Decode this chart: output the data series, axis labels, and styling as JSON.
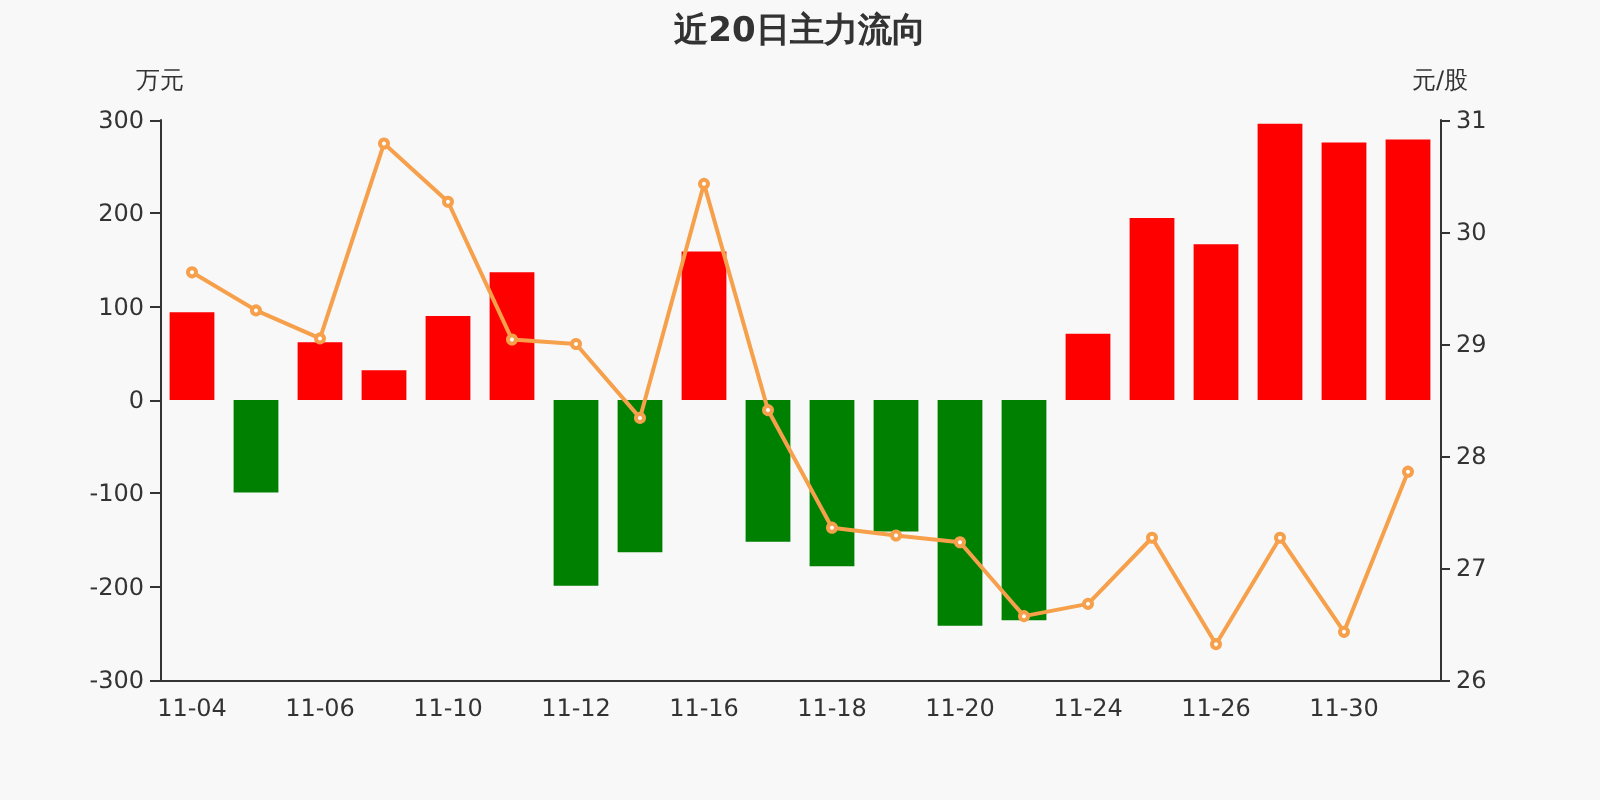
{
  "chart_data": {
    "type": "bar",
    "title": "近20日主力流向",
    "ylabel": "万元",
    "y2label": "元/股",
    "categories": [
      "11-04",
      null,
      "11-06",
      null,
      "11-10",
      null,
      "11-12",
      null,
      "11-16",
      null,
      "11-18",
      null,
      "11-20",
      null,
      "11-24",
      null,
      "11-26",
      null,
      "11-30",
      null
    ],
    "series": [
      {
        "colors": [
          "#ff0000",
          "#008000",
          "#ff0000",
          "#ff0000",
          "#ff0000",
          "#ff0000",
          "#008000",
          "#008000",
          "#ff0000",
          "#008000",
          "#008000",
          "#008000",
          "#008000",
          "#008000",
          "#ff0000",
          "#ff0000",
          "#ff0000",
          "#ff0000",
          "#ff0000",
          "#ff0000"
        ],
        "values": [
          94,
          -99,
          62,
          32,
          90,
          137,
          -199,
          -163,
          159,
          -152,
          -178,
          -141,
          -242,
          -236,
          71,
          195,
          167,
          296,
          276,
          279
        ]
      },
      {
        "type": "line",
        "axis": "y2",
        "color": "#f7a04b",
        "marker": "circle",
        "values": [
          29.64,
          29.3,
          29.05,
          30.79,
          30.27,
          29.04,
          29.0,
          28.34,
          30.43,
          28.41,
          27.36,
          27.29,
          27.23,
          26.57,
          26.68,
          27.27,
          26.32,
          27.27,
          26.43,
          27.86
        ]
      }
    ],
    "ylim": [
      -300,
      300
    ],
    "yticks": [
      -300,
      -200,
      -100,
      0,
      100,
      200,
      300
    ],
    "y2lim": [
      26,
      31
    ],
    "y2ticks": [
      26,
      27,
      28,
      29,
      30,
      31
    ],
    "grid": false
  }
}
